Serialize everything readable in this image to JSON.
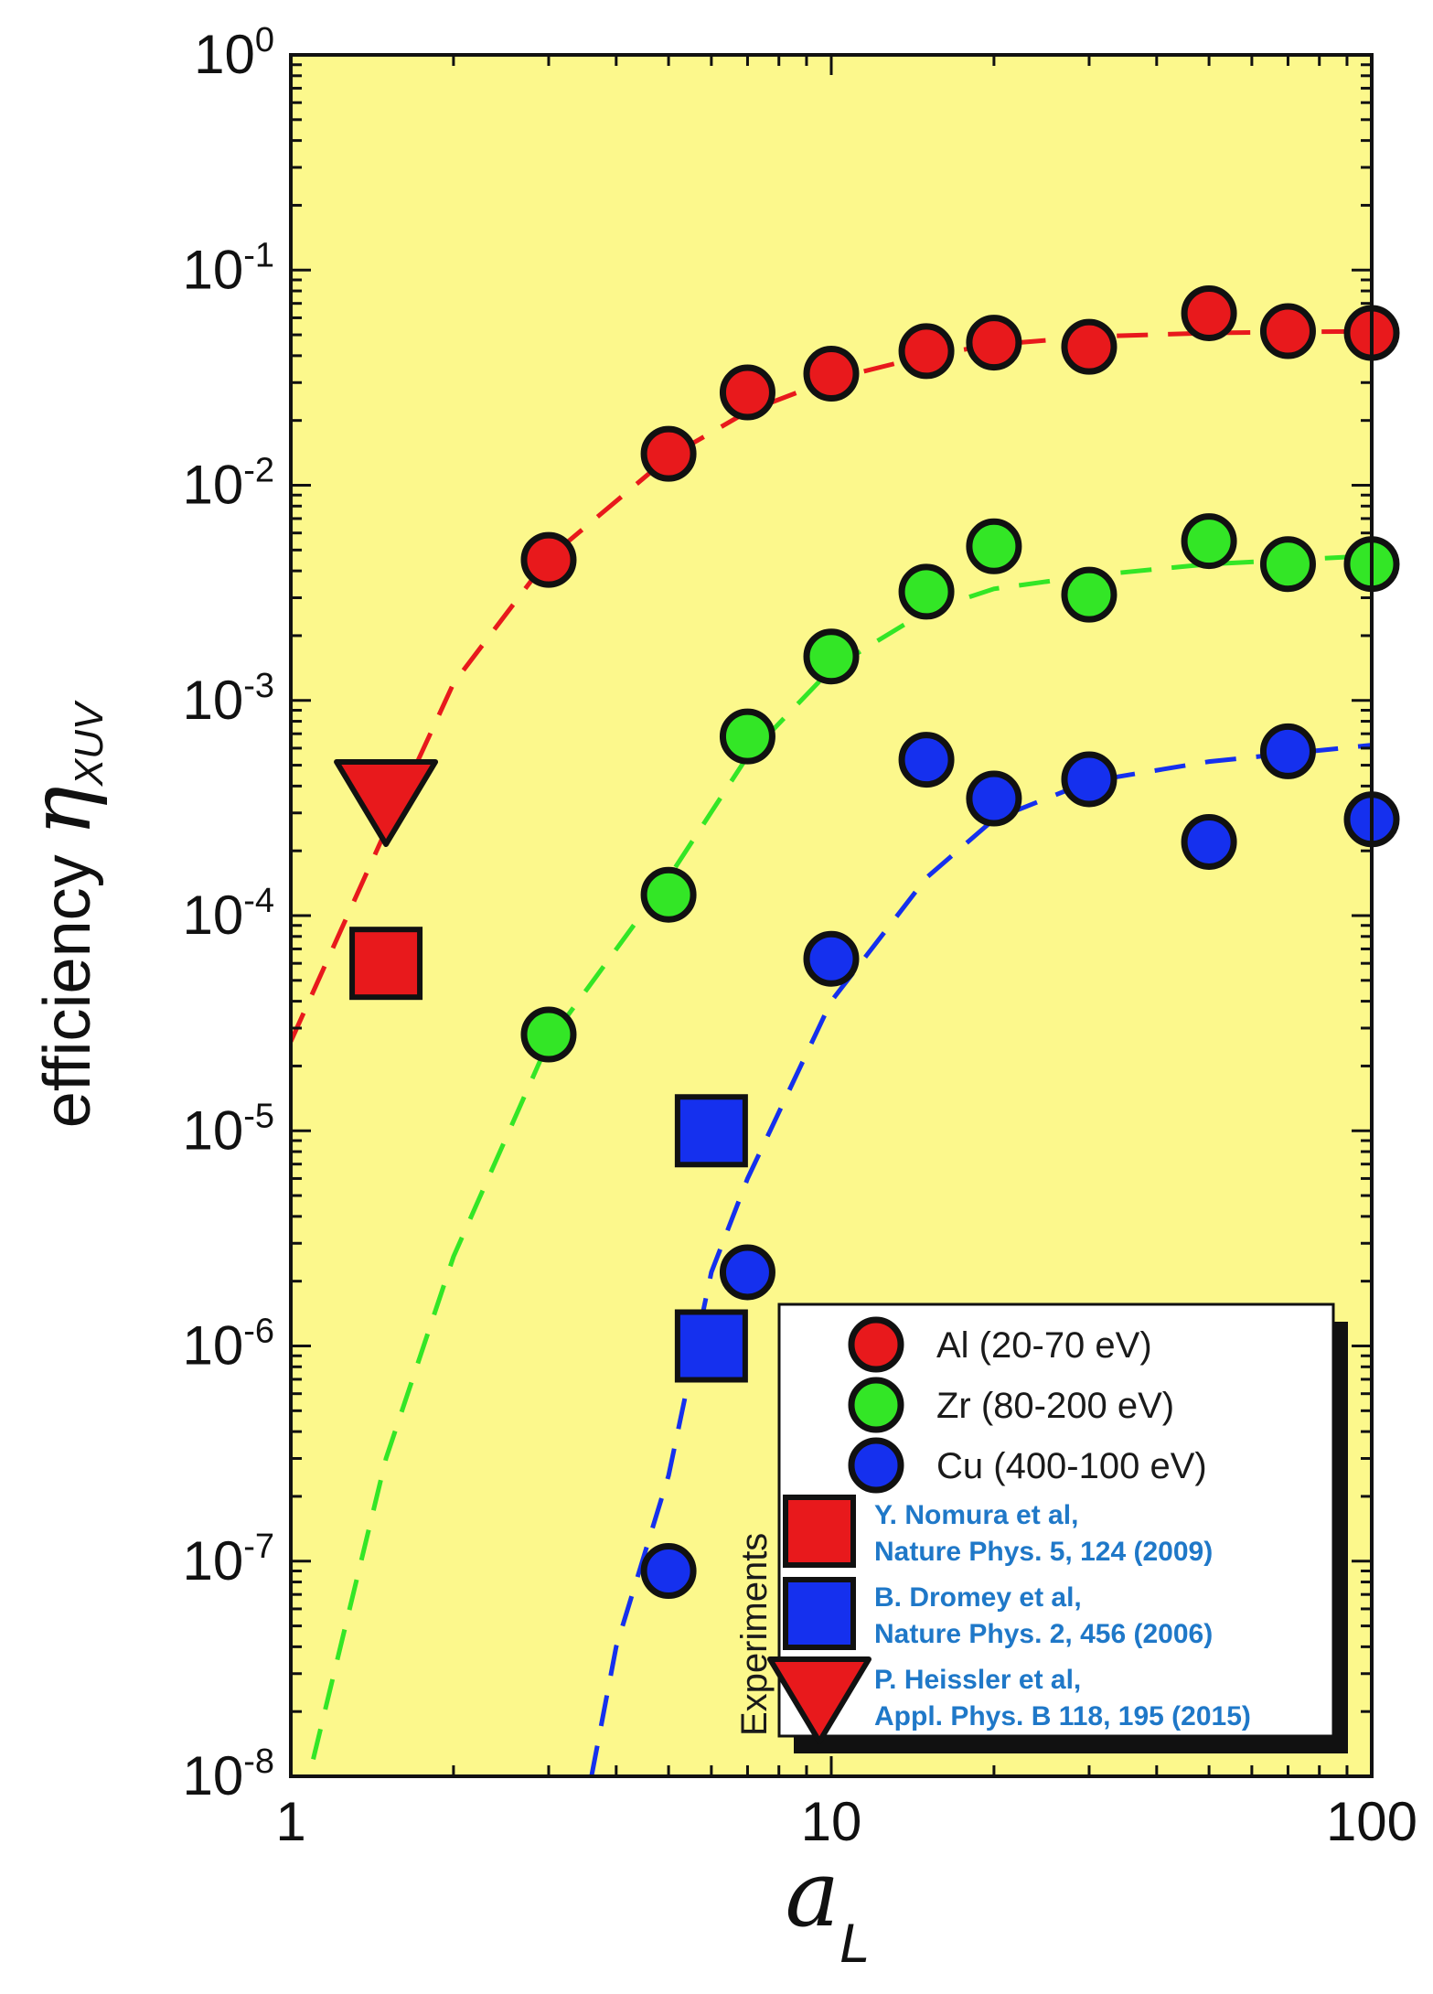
{
  "chart_data": {
    "type": "scatter",
    "x_scale": "log",
    "y_scale": "log",
    "xlim": [
      1,
      100
    ],
    "ylim": [
      1e-08,
      1
    ],
    "grid": false,
    "plot_background": "#fcf88c",
    "x_ticks": [
      {
        "value": 1,
        "label": "1"
      },
      {
        "value": 10,
        "label": "10"
      },
      {
        "value": 100,
        "label": "100"
      }
    ],
    "y_ticks": [
      {
        "value": 1,
        "base": "10",
        "exp": "0"
      },
      {
        "value": 0.1,
        "base": "10",
        "exp": "-1"
      },
      {
        "value": 0.01,
        "base": "10",
        "exp": "-2"
      },
      {
        "value": 0.001,
        "base": "10",
        "exp": "-3"
      },
      {
        "value": 0.0001,
        "base": "10",
        "exp": "-4"
      },
      {
        "value": 1e-05,
        "base": "10",
        "exp": "-5"
      },
      {
        "value": 1e-06,
        "base": "10",
        "exp": "-6"
      },
      {
        "value": 1e-07,
        "base": "10",
        "exp": "-7"
      },
      {
        "value": 1e-08,
        "base": "10",
        "exp": "-8"
      }
    ],
    "ylabel": {
      "prefix": "efficiency ",
      "symbol": "η",
      "subscript": "XUV"
    },
    "xlabel": {
      "symbol": "a",
      "subscript": "L"
    },
    "series": [
      {
        "name": "Al (20-70 eV)",
        "marker": "circle",
        "color": "#e8191c",
        "points": [
          {
            "x": 3,
            "y": 0.0045
          },
          {
            "x": 5,
            "y": 0.014
          },
          {
            "x": 7,
            "y": 0.027
          },
          {
            "x": 10,
            "y": 0.033
          },
          {
            "x": 15,
            "y": 0.042
          },
          {
            "x": 20,
            "y": 0.046
          },
          {
            "x": 30,
            "y": 0.044
          },
          {
            "x": 50,
            "y": 0.063
          },
          {
            "x": 70,
            "y": 0.052
          },
          {
            "x": 100,
            "y": 0.051
          }
        ]
      },
      {
        "name": "Zr (80-200 eV)",
        "marker": "circle",
        "color": "#33e626",
        "points": [
          {
            "x": 3,
            "y": 2.8e-05
          },
          {
            "x": 5,
            "y": 0.000125
          },
          {
            "x": 7,
            "y": 0.00068
          },
          {
            "x": 10,
            "y": 0.0016
          },
          {
            "x": 15,
            "y": 0.0032
          },
          {
            "x": 20,
            "y": 0.0052
          },
          {
            "x": 30,
            "y": 0.0031
          },
          {
            "x": 50,
            "y": 0.0055
          },
          {
            "x": 70,
            "y": 0.0043
          },
          {
            "x": 100,
            "y": 0.0043
          }
        ]
      },
      {
        "name": "Cu (400-100 eV)",
        "marker": "circle",
        "color": "#1530ee",
        "points": [
          {
            "x": 5,
            "y": 9e-08
          },
          {
            "x": 7,
            "y": 2.2e-06
          },
          {
            "x": 10,
            "y": 6.3e-05
          },
          {
            "x": 15,
            "y": 0.00053
          },
          {
            "x": 20,
            "y": 0.00035
          },
          {
            "x": 30,
            "y": 0.00043
          },
          {
            "x": 50,
            "y": 0.00022
          },
          {
            "x": 70,
            "y": 0.00058
          },
          {
            "x": 100,
            "y": 0.00028
          }
        ]
      }
    ],
    "fits": [
      {
        "series": "Al (20-70 eV)",
        "color": "#e8191c",
        "style": "dashed",
        "points": [
          {
            "x": 1,
            "y": 2.6e-05
          },
          {
            "x": 1.5,
            "y": 0.00025
          },
          {
            "x": 2,
            "y": 0.0012
          },
          {
            "x": 3,
            "y": 0.0046
          },
          {
            "x": 5,
            "y": 0.0135
          },
          {
            "x": 7,
            "y": 0.022
          },
          {
            "x": 10,
            "y": 0.031
          },
          {
            "x": 15,
            "y": 0.04
          },
          {
            "x": 20,
            "y": 0.045
          },
          {
            "x": 30,
            "y": 0.049
          },
          {
            "x": 50,
            "y": 0.051
          },
          {
            "x": 100,
            "y": 0.052
          }
        ]
      },
      {
        "series": "Zr (80-200 eV)",
        "color": "#33e626",
        "style": "dashed",
        "points": [
          {
            "x": 1.1,
            "y": 1.2e-08
          },
          {
            "x": 1.5,
            "y": 3e-07
          },
          {
            "x": 2,
            "y": 2.6e-06
          },
          {
            "x": 3,
            "y": 2.6e-05
          },
          {
            "x": 5,
            "y": 0.00015
          },
          {
            "x": 7,
            "y": 0.00055
          },
          {
            "x": 10,
            "y": 0.0014
          },
          {
            "x": 15,
            "y": 0.0026
          },
          {
            "x": 20,
            "y": 0.0033
          },
          {
            "x": 30,
            "y": 0.0038
          },
          {
            "x": 50,
            "y": 0.0043
          },
          {
            "x": 100,
            "y": 0.0047
          }
        ]
      },
      {
        "series": "Cu (400-100 eV)",
        "color": "#1530ee",
        "style": "dashed",
        "points": [
          {
            "x": 3.6,
            "y": 1e-08
          },
          {
            "x": 4,
            "y": 4e-08
          },
          {
            "x": 5,
            "y": 2.5e-07
          },
          {
            "x": 6,
            "y": 2.2e-06
          },
          {
            "x": 7,
            "y": 6e-06
          },
          {
            "x": 10,
            "y": 4e-05
          },
          {
            "x": 15,
            "y": 0.00015
          },
          {
            "x": 20,
            "y": 0.00028
          },
          {
            "x": 30,
            "y": 0.00042
          },
          {
            "x": 50,
            "y": 0.00052
          },
          {
            "x": 100,
            "y": 0.00062
          }
        ]
      }
    ],
    "experiments": [
      {
        "id": "nomura",
        "marker": "square",
        "color": "#e8191c",
        "points": [
          {
            "x": 1.5,
            "y": 6e-05
          }
        ],
        "ref_line1": "Y. Nomura et al,",
        "ref_line2": "Nature Phys. 5, 124 (2009)"
      },
      {
        "id": "dromey",
        "marker": "square",
        "color": "#1530ee",
        "points": [
          {
            "x": 6,
            "y": 1e-05
          },
          {
            "x": 6,
            "y": 1e-06
          }
        ],
        "ref_line1": "B. Dromey et al,",
        "ref_line2": "Nature Phys. 2, 456 (2006)"
      },
      {
        "id": "heissler",
        "marker": "triangle-down",
        "color": "#e8191c",
        "points": [
          {
            "x": 1.5,
            "y": 0.00035
          }
        ],
        "ref_line1": "P. Heissler et al,",
        "ref_line2": "Appl. Phys. B 118, 195 (2015)"
      }
    ],
    "legend": {
      "position": "bottom-right",
      "experiments_label": "Experiments"
    }
  }
}
